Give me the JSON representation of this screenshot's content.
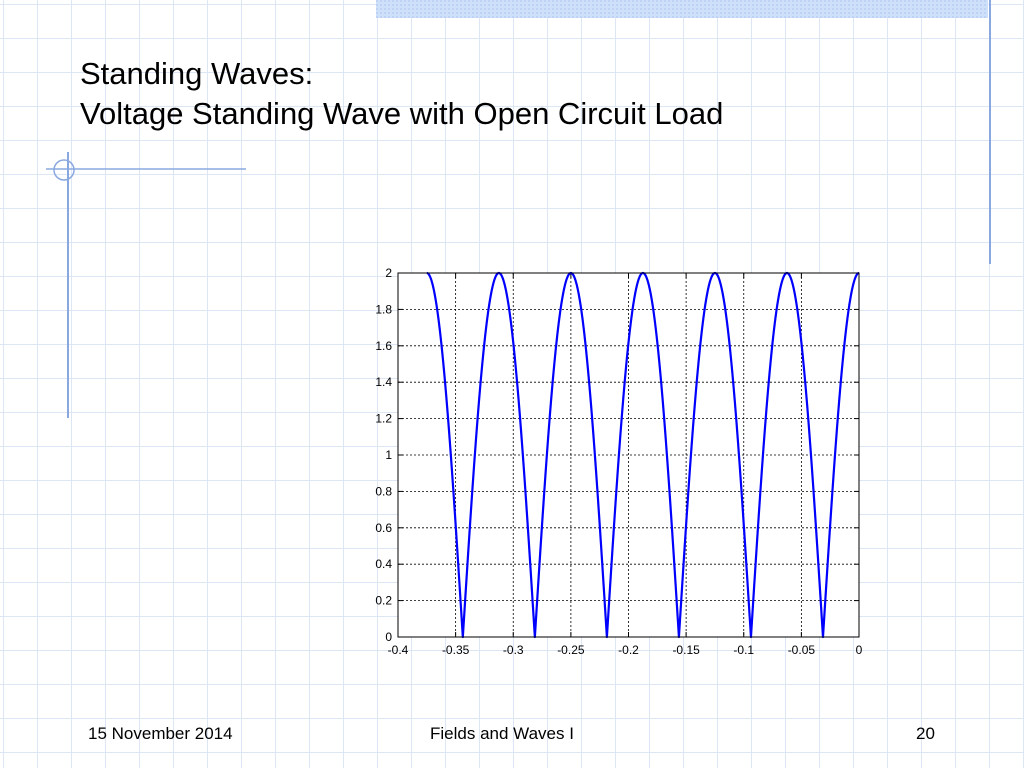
{
  "slide": {
    "title_line1": "Standing Waves:",
    "title_line2": "Voltage Standing Wave with Open Circuit Load"
  },
  "footer": {
    "date": "15 November 2014",
    "course": "Fields and Waves I",
    "page_number": "20"
  },
  "colors": {
    "accent": "#8aa8e0",
    "curve": "#0000ff",
    "grid_background": "#dde6f4"
  },
  "chart_data": {
    "type": "line",
    "title": "",
    "xlabel": "",
    "ylabel": "",
    "xlim": [
      -0.4,
      0
    ],
    "ylim": [
      0,
      2
    ],
    "grid": true,
    "grid_style": "dashed",
    "x_ticks": [
      -0.4,
      -0.35,
      -0.3,
      -0.25,
      -0.2,
      -0.15,
      -0.1,
      -0.05,
      0
    ],
    "x_tick_labels": [
      "-0.4",
      "-0.35",
      "-0.3",
      "-0.25",
      "-0.2",
      "-0.15",
      "-0.1",
      "-0.05",
      "0"
    ],
    "y_ticks": [
      0,
      0.2,
      0.4,
      0.6,
      0.8,
      1,
      1.2,
      1.4,
      1.6,
      1.8,
      2
    ],
    "y_tick_labels": [
      "0",
      "0.2",
      "0.4",
      "0.6",
      "0.8",
      "1",
      "1.2",
      "1.4",
      "1.6",
      "1.8",
      "2"
    ],
    "series": [
      {
        "function": "2*abs(cos(2*pi*x/0.125))",
        "wavelength": 0.125,
        "x_range": [
          -0.375,
          0
        ],
        "peaks_x": [
          -0.375,
          -0.3125,
          -0.25,
          -0.1875,
          -0.125,
          -0.0625,
          0
        ],
        "zeros_x": [
          -0.34375,
          -0.28125,
          -0.21875,
          -0.15625,
          -0.09375,
          -0.03125
        ],
        "peak_value": 2,
        "min_value": 0
      }
    ]
  }
}
